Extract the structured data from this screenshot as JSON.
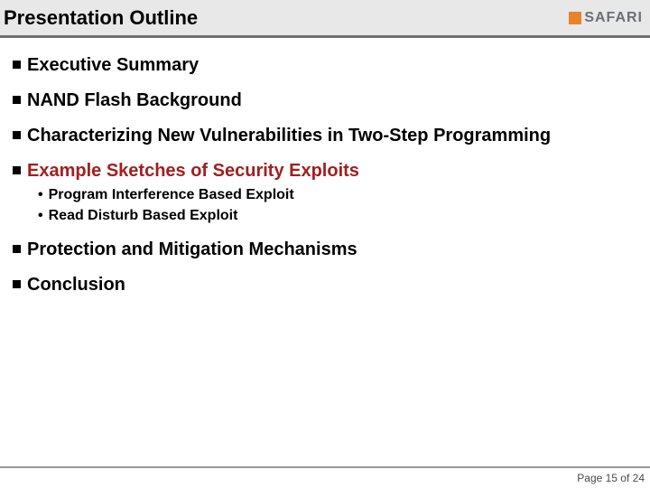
{
  "header": {
    "title": "Presentation Outline",
    "logo_text": "SAFARI",
    "title_fontsize": 22,
    "title_color": "#000000",
    "bg_color": "#e8e8e8",
    "border_color": "#707070",
    "logo_box_color": "#e8832b",
    "logo_text_color": "#6a7074"
  },
  "outline": {
    "bullet_color": "#000000",
    "text_color": "#000000",
    "highlight_color": "#a21e20",
    "section_fontsize": 20,
    "sub_fontsize": 16,
    "items": [
      {
        "label": "Executive Summary",
        "highlight": false
      },
      {
        "label": "NAND Flash Background",
        "highlight": false
      },
      {
        "label": "Characterizing New Vulnerabilities in Two-Step Programming",
        "highlight": false
      },
      {
        "label": "Example Sketches of Security Exploits",
        "highlight": true,
        "sub": [
          "Program Interference Based Exploit",
          "Read Disturb Based Exploit"
        ]
      },
      {
        "label": "Protection and Mitigation Mechanisms",
        "highlight": false
      },
      {
        "label": "Conclusion",
        "highlight": false
      }
    ]
  },
  "footer": {
    "text": "Page 15 of 24",
    "color": "#4a4a4a",
    "fontsize": 12
  }
}
